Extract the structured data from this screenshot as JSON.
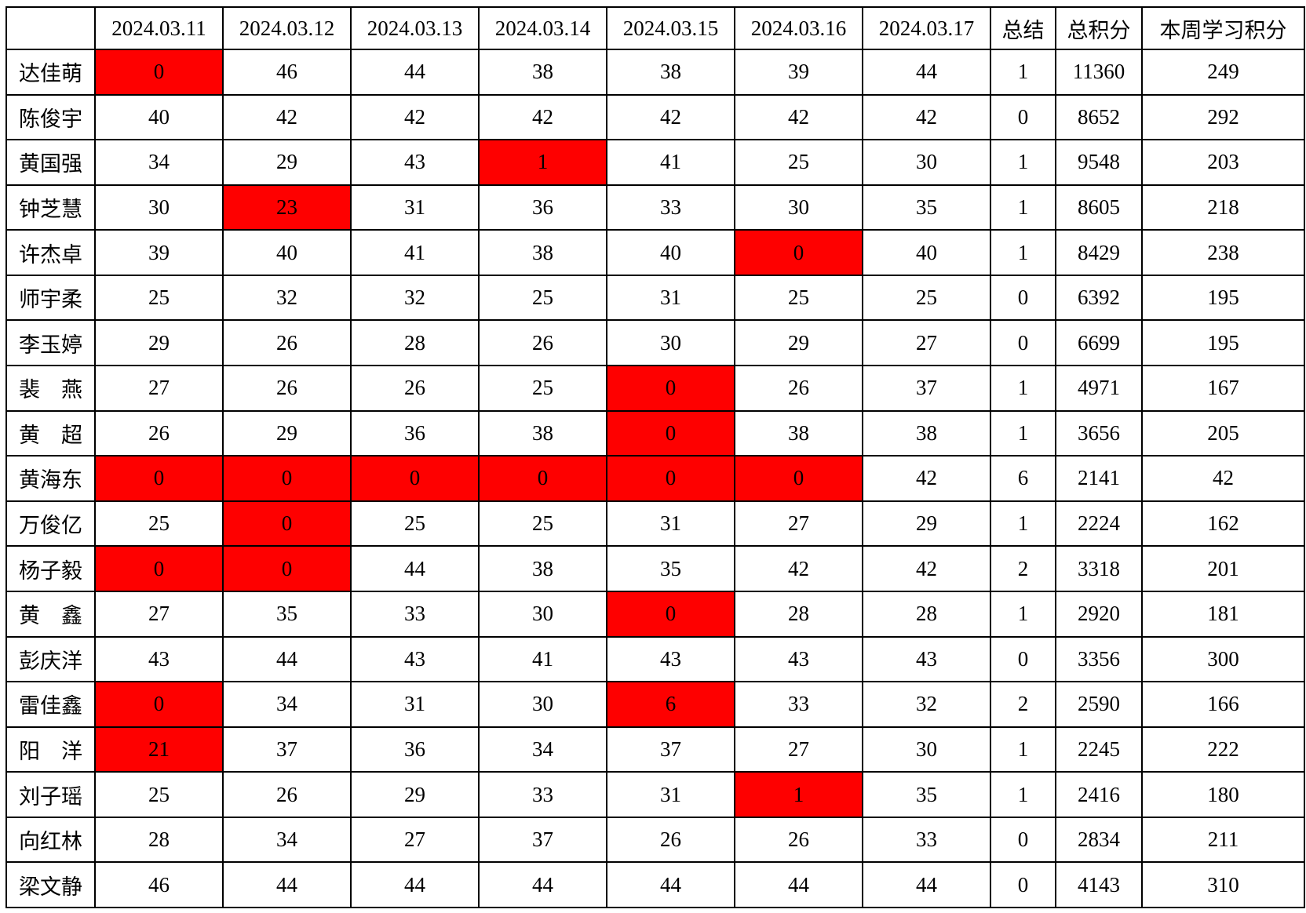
{
  "colors": {
    "header_accent_red": "#ff0000",
    "value_red": "#ff0000",
    "flag_fill": "#fe0000",
    "flag_text": "#c00000",
    "grid_border": "#000000"
  },
  "table": {
    "columns": [
      {
        "key": "name",
        "label": "",
        "red": false
      },
      {
        "key": "d1",
        "label": "2024.03.11",
        "red": false
      },
      {
        "key": "d2",
        "label": "2024.03.12",
        "red": false
      },
      {
        "key": "d3",
        "label": "2024.03.13",
        "red": false
      },
      {
        "key": "d4",
        "label": "2024.03.14",
        "red": false
      },
      {
        "key": "d5",
        "label": "2024.03.15",
        "red": false
      },
      {
        "key": "d6",
        "label": "2024.03.16",
        "red": false
      },
      {
        "key": "d7",
        "label": "2024.03.17",
        "red": false
      },
      {
        "key": "summary",
        "label": "总结",
        "red": true
      },
      {
        "key": "total",
        "label": "总积分",
        "red": true
      },
      {
        "key": "week",
        "label": "本周学习积分",
        "red": true
      }
    ],
    "rows": [
      {
        "name": "达佳萌",
        "values": [
          0,
          46,
          44,
          38,
          38,
          39,
          44
        ],
        "flagged_days": [
          0
        ],
        "summary": 1,
        "total": 11360,
        "week": 249
      },
      {
        "name": "陈俊宇",
        "values": [
          40,
          42,
          42,
          42,
          42,
          42,
          42
        ],
        "flagged_days": [],
        "summary": 0,
        "total": 8652,
        "week": 292
      },
      {
        "name": "黄国强",
        "values": [
          34,
          29,
          43,
          1,
          41,
          25,
          30
        ],
        "flagged_days": [
          3
        ],
        "summary": 1,
        "total": 9548,
        "week": 203
      },
      {
        "name": "钟芝慧",
        "values": [
          30,
          23,
          31,
          36,
          33,
          30,
          35
        ],
        "flagged_days": [
          1
        ],
        "summary": 1,
        "total": 8605,
        "week": 218
      },
      {
        "name": "许杰卓",
        "values": [
          39,
          40,
          41,
          38,
          40,
          0,
          40
        ],
        "flagged_days": [
          5
        ],
        "summary": 1,
        "total": 8429,
        "week": 238
      },
      {
        "name": "师宇柔",
        "values": [
          25,
          32,
          32,
          25,
          31,
          25,
          25
        ],
        "flagged_days": [],
        "summary": 0,
        "total": 6392,
        "week": 195
      },
      {
        "name": "李玉婷",
        "values": [
          29,
          26,
          28,
          26,
          30,
          29,
          27
        ],
        "flagged_days": [],
        "summary": 0,
        "total": 6699,
        "week": 195
      },
      {
        "name": "裴　燕",
        "values": [
          27,
          26,
          26,
          25,
          0,
          26,
          37
        ],
        "flagged_days": [
          4
        ],
        "summary": 1,
        "total": 4971,
        "week": 167
      },
      {
        "name": "黄　超",
        "values": [
          26,
          29,
          36,
          38,
          0,
          38,
          38
        ],
        "flagged_days": [
          4
        ],
        "summary": 1,
        "total": 3656,
        "week": 205
      },
      {
        "name": "黄海东",
        "values": [
          0,
          0,
          0,
          0,
          0,
          0,
          42
        ],
        "flagged_days": [
          0,
          1,
          2,
          3,
          4,
          5
        ],
        "summary": 6,
        "total": 2141,
        "week": 42
      },
      {
        "name": "万俊亿",
        "values": [
          25,
          0,
          25,
          25,
          31,
          27,
          29
        ],
        "flagged_days": [
          1
        ],
        "summary": 1,
        "total": 2224,
        "week": 162
      },
      {
        "name": "杨子毅",
        "values": [
          0,
          0,
          44,
          38,
          35,
          42,
          42
        ],
        "flagged_days": [
          0,
          1
        ],
        "summary": 2,
        "total": 3318,
        "week": 201
      },
      {
        "name": "黄　鑫",
        "values": [
          27,
          35,
          33,
          30,
          0,
          28,
          28
        ],
        "flagged_days": [
          4
        ],
        "summary": 1,
        "total": 2920,
        "week": 181
      },
      {
        "name": "彭庆洋",
        "values": [
          43,
          44,
          43,
          41,
          43,
          43,
          43
        ],
        "flagged_days": [],
        "summary": 0,
        "total": 3356,
        "week": 300
      },
      {
        "name": "雷佳鑫",
        "values": [
          0,
          34,
          31,
          30,
          6,
          33,
          32
        ],
        "flagged_days": [
          0,
          4
        ],
        "summary": 2,
        "total": 2590,
        "week": 166
      },
      {
        "name": "阳　洋",
        "values": [
          21,
          37,
          36,
          34,
          37,
          27,
          30
        ],
        "flagged_days": [
          0
        ],
        "summary": 1,
        "total": 2245,
        "week": 222
      },
      {
        "name": "刘子瑶",
        "values": [
          25,
          26,
          29,
          33,
          31,
          1,
          35
        ],
        "flagged_days": [
          5
        ],
        "summary": 1,
        "total": 2416,
        "week": 180
      },
      {
        "name": "向红林",
        "values": [
          28,
          34,
          27,
          37,
          26,
          26,
          33
        ],
        "flagged_days": [],
        "summary": 0,
        "total": 2834,
        "week": 211
      },
      {
        "name": "梁文静",
        "values": [
          46,
          44,
          44,
          44,
          44,
          44,
          44
        ],
        "flagged_days": [],
        "summary": 0,
        "total": 4143,
        "week": 310
      }
    ]
  }
}
